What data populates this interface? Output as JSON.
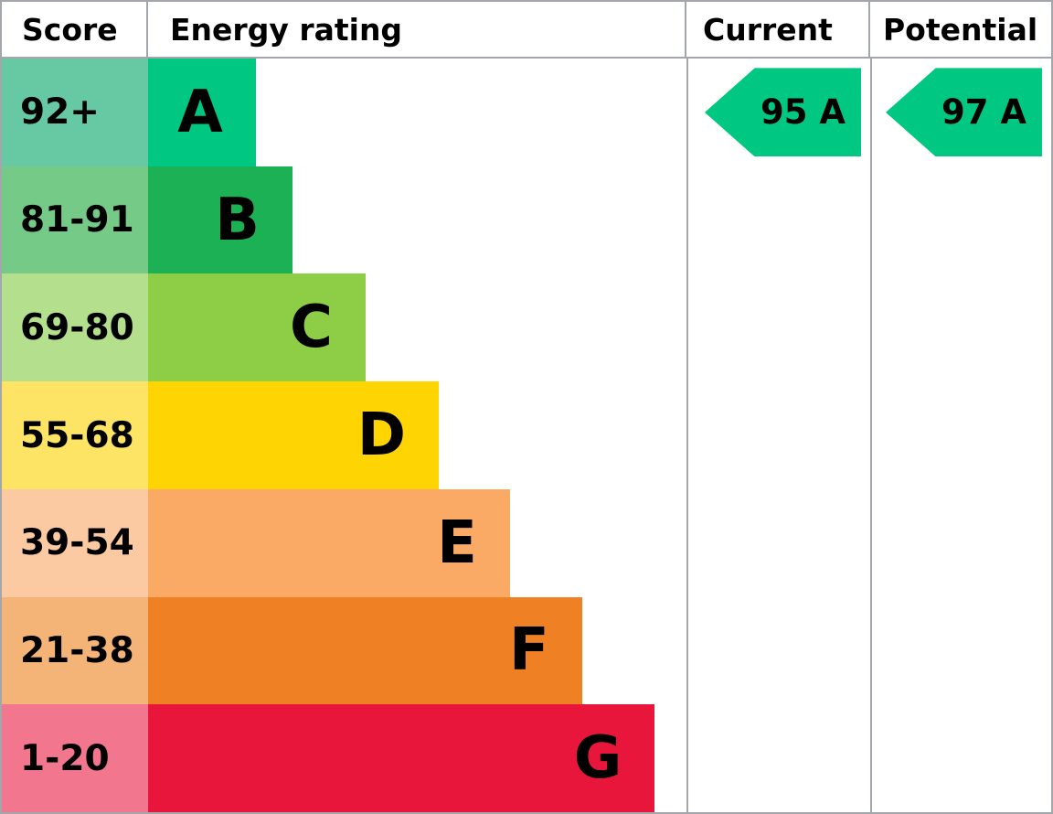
{
  "header": {
    "score": "Score",
    "rating": "Energy rating",
    "current": "Current",
    "potential": "Potential"
  },
  "chart_data": {
    "type": "bar",
    "description": "EPC energy efficiency rating chart",
    "columns": [
      "Score",
      "Energy rating",
      "Current",
      "Potential"
    ],
    "bands": [
      {
        "letter": "A",
        "score_range": "92+",
        "bar_color": "#00c781",
        "score_bg": "#66c9a3",
        "bar_width_pct": 20.0
      },
      {
        "letter": "B",
        "score_range": "81-91",
        "bar_color": "#1cb155",
        "score_bg": "#76ca88",
        "bar_width_pct": 26.8
      },
      {
        "letter": "C",
        "score_range": "69-80",
        "bar_color": "#8dce46",
        "score_bg": "#b4df8c",
        "bar_width_pct": 40.4
      },
      {
        "letter": "D",
        "score_range": "55-68",
        "bar_color": "#fed403",
        "score_bg": "#fde465",
        "bar_width_pct": 54.0
      },
      {
        "letter": "E",
        "score_range": "39-54",
        "bar_color": "#fbaa66",
        "score_bg": "#fbcaa3",
        "bar_width_pct": 67.2
      },
      {
        "letter": "F",
        "score_range": "21-38",
        "bar_color": "#ef8023",
        "score_bg": "#f4b377",
        "bar_width_pct": 80.6
      },
      {
        "letter": "G",
        "score_range": "1-20",
        "bar_color": "#e9163c",
        "score_bg": "#f2768d",
        "bar_width_pct": 94.1
      }
    ],
    "current": {
      "score": 95,
      "band": "A",
      "label": "95 A"
    },
    "potential": {
      "score": 97,
      "band": "A",
      "label": "97 A"
    },
    "arrow_color": "#00c781"
  },
  "colors": {
    "border": "#a3a6ab",
    "text": "#000000",
    "background": "#ffffff"
  }
}
